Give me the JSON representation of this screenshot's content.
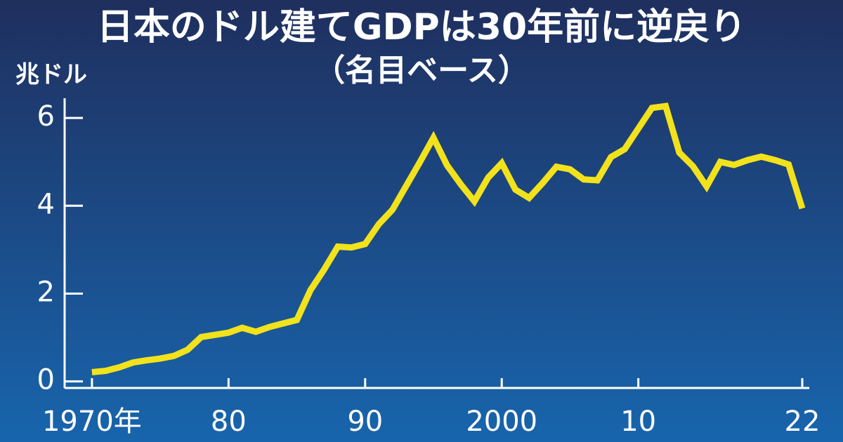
{
  "chart_data": {
    "type": "line",
    "title": "日本のドル建てGDPは30年前に逆戻り",
    "subtitle": "（名目ベース）",
    "y_label": "兆ドル",
    "x": [
      1970,
      1971,
      1972,
      1973,
      1974,
      1975,
      1976,
      1977,
      1978,
      1979,
      1980,
      1981,
      1982,
      1983,
      1984,
      1985,
      1986,
      1987,
      1988,
      1989,
      1990,
      1991,
      1992,
      1993,
      1994,
      1995,
      1996,
      1997,
      1998,
      1999,
      2000,
      2001,
      2002,
      2003,
      2004,
      2005,
      2006,
      2007,
      2008,
      2009,
      2010,
      2011,
      2012,
      2013,
      2014,
      2015,
      2016,
      2017,
      2018,
      2019,
      2020,
      2021,
      2022
    ],
    "series": [
      {
        "name": "GDP",
        "color": "#f2e21c",
        "values": [
          0.21,
          0.24,
          0.32,
          0.43,
          0.48,
          0.52,
          0.58,
          0.72,
          1.01,
          1.06,
          1.11,
          1.22,
          1.13,
          1.24,
          1.32,
          1.4,
          2.08,
          2.55,
          3.07,
          3.05,
          3.13,
          3.58,
          3.91,
          4.45,
          4.99,
          5.55,
          4.92,
          4.49,
          4.1,
          4.64,
          4.97,
          4.37,
          4.18,
          4.52,
          4.89,
          4.83,
          4.6,
          4.58,
          5.11,
          5.29,
          5.76,
          6.23,
          6.27,
          5.21,
          4.9,
          4.44,
          5.0,
          4.93,
          5.04,
          5.12,
          5.04,
          4.94,
          3.94
        ]
      }
    ],
    "xlim": [
      1968,
      2022
    ],
    "xticks": [
      {
        "value": 1970,
        "label": "1970年"
      },
      {
        "value": 1980,
        "label": "80"
      },
      {
        "value": 1990,
        "label": "90"
      },
      2000,
      {
        "value": 2010,
        "label": "10"
      },
      22
    ],
    "ylim": [
      -0.15,
      6.45
    ],
    "yticks": [
      0,
      2,
      4,
      6
    ]
  }
}
